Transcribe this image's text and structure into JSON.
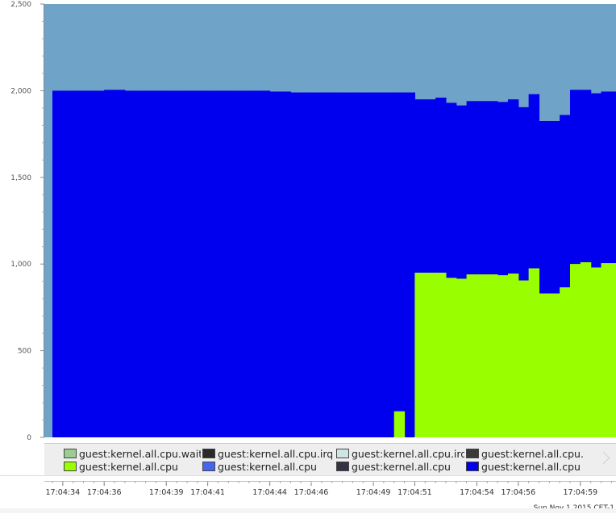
{
  "chart_data": {
    "type": "area",
    "stacked": true,
    "step": true,
    "title": "",
    "xlabel": "",
    "ylabel": "",
    "ylim": [
      0,
      2500
    ],
    "yticks": [
      0,
      500,
      1000,
      1500,
      2000,
      2500
    ],
    "ytick_labels": [
      "0",
      "500",
      "1,000",
      "1,500",
      "2,000",
      "2,500"
    ],
    "xtick_labels": [
      "17:04:34",
      "17:04:36",
      "17:04:39",
      "17:04:41",
      "17:04:44",
      "17:04:46",
      "17:04:49",
      "17:04:51",
      "17:04:54",
      "17:04:56",
      "17:04:59"
    ],
    "date_label": "Sun Nov  1 2015 CET-1",
    "background_color": "#6fa3c8",
    "grid": false,
    "legend_position": "bottom",
    "x": [
      "17:04:33.5",
      "17:04:34",
      "17:04:34.5",
      "17:04:35",
      "17:04:35.5",
      "17:04:36",
      "17:04:37",
      "17:04:37.5",
      "17:04:38",
      "17:04:38.5",
      "17:04:39",
      "17:04:40",
      "17:04:40.5",
      "17:04:41",
      "17:04:41.5",
      "17:04:42",
      "17:04:43",
      "17:04:43.5",
      "17:04:44",
      "17:04:44.5",
      "17:04:45",
      "17:04:46",
      "17:04:46.5",
      "17:04:47",
      "17:04:47.5",
      "17:04:48",
      "17:04:49",
      "17:04:49.5",
      "17:04:50",
      "17:04:50.5",
      "17:04:51",
      "17:04:52",
      "17:04:52.5",
      "17:04:53",
      "17:04:53.5",
      "17:04:54",
      "17:04:55",
      "17:04:55.5",
      "17:04:56",
      "17:04:56.5",
      "17:04:57",
      "17:04:58",
      "17:04:58.5",
      "17:04:59",
      "17:04:59.5",
      "17:05:00"
    ],
    "series": [
      {
        "name": "guest:kernel.all.cpu",
        "color": "#99ff00",
        "values": [
          0,
          0,
          0,
          0,
          0,
          0,
          0,
          0,
          0,
          0,
          0,
          0,
          0,
          0,
          0,
          0,
          0,
          0,
          0,
          0,
          0,
          0,
          0,
          0,
          0,
          0,
          0,
          0,
          150,
          0,
          950,
          950,
          920,
          915,
          940,
          940,
          935,
          945,
          905,
          975,
          830,
          865,
          1000,
          1010,
          980,
          1005
        ]
      },
      {
        "name": "guest:kernel.all.cpu",
        "color": "#0000ee",
        "values": [
          2000,
          2000,
          2000,
          2000,
          2000,
          2005,
          2000,
          2000,
          2000,
          2000,
          2000,
          2000,
          2000,
          2000,
          2000,
          2000,
          2000,
          2000,
          1995,
          1995,
          1990,
          1990,
          1990,
          1990,
          1990,
          1990,
          1990,
          1990,
          1840,
          1990,
          1000,
          1010,
          1010,
          1000,
          1000,
          1000,
          1000,
          1005,
          1000,
          1005,
          995,
          995,
          1005,
          995,
          1005,
          990
        ]
      }
    ]
  },
  "legend": [
    {
      "label": "guest:kernel.all.cpu.wait",
      "color": "#9acd90"
    },
    {
      "label": "guest:kernel.all.cpu.irq",
      "color": "#2a2a2a"
    },
    {
      "label": "guest:kernel.all.cpu.irq",
      "color": "#d0e4e8"
    },
    {
      "label": "guest:kernel.all.cpu.",
      "color": "#3a3a3a"
    },
    {
      "label": "guest:kernel.all.cpu",
      "color": "#99ff00"
    },
    {
      "label": "guest:kernel.all.cpu",
      "color": "#4466ee"
    },
    {
      "label": "guest:kernel.all.cpu",
      "color": "#333344"
    },
    {
      "label": "guest:kernel.all.cpu",
      "color": "#0000ee"
    }
  ]
}
